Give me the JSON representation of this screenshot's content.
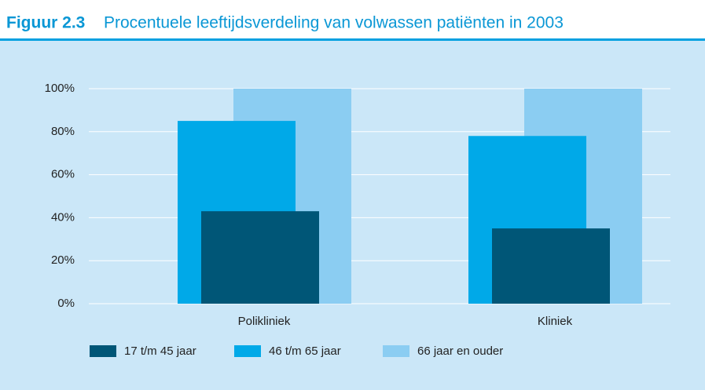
{
  "chart_data": {
    "type": "bar",
    "figure_label": "Figuur 2.3",
    "title": "Procentuele leeftijdsverdeling van volwassen patiënten in 2003",
    "categories": [
      "Polikliniek",
      "Kliniek"
    ],
    "series": [
      {
        "name": "17 t/m 45 jaar",
        "color": "#005677",
        "values": [
          43,
          35
        ]
      },
      {
        "name": "46 t/m 65 jaar",
        "color": "#00a9e8",
        "values": [
          85,
          78
        ]
      },
      {
        "name": "66 jaar en ouder",
        "color": "#8bcdf2",
        "values": [
          100,
          100
        ]
      }
    ],
    "ylim": [
      0,
      100
    ],
    "yticks": [
      {
        "value": 0,
        "label": "0%"
      },
      {
        "value": 20,
        "label": "20%"
      },
      {
        "value": 40,
        "label": "40%"
      },
      {
        "value": 60,
        "label": "60%"
      },
      {
        "value": 80,
        "label": "80%"
      },
      {
        "value": 100,
        "label": "100%"
      }
    ],
    "grid": true
  }
}
